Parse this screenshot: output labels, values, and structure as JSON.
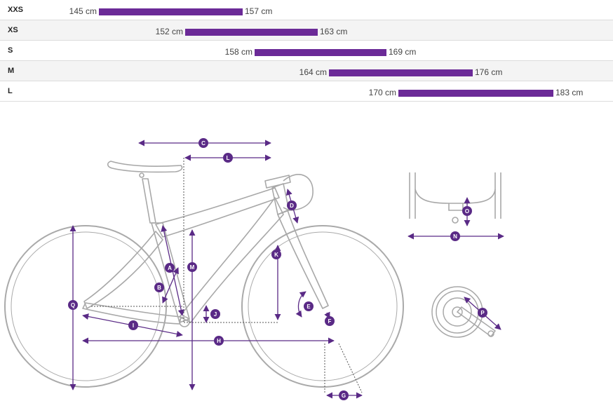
{
  "size_chart": {
    "rows": [
      {
        "size": "XXS",
        "min": "145 cm",
        "max": "157 cm"
      },
      {
        "size": "XS",
        "min": "152 cm",
        "max": "163 cm"
      },
      {
        "size": "S",
        "min": "158 cm",
        "max": "169 cm"
      },
      {
        "size": "M",
        "min": "164 cm",
        "max": "176 cm"
      },
      {
        "size": "L",
        "min": "170 cm",
        "max": "183 cm"
      }
    ],
    "bar_color": "#6b2a97"
  },
  "geometry_markers": {
    "A": "A",
    "B": "B",
    "C": "C",
    "D": "D",
    "E": "E",
    "F": "F",
    "G": "G",
    "H": "H",
    "I": "I",
    "J": "J",
    "K": "K",
    "L": "L",
    "M": "M",
    "N": "N",
    "O": "O",
    "P": "P",
    "Q": "Q"
  },
  "colors": {
    "accent": "#5a2a86",
    "outline": "#a8a8a8",
    "dashed": "#555555"
  }
}
